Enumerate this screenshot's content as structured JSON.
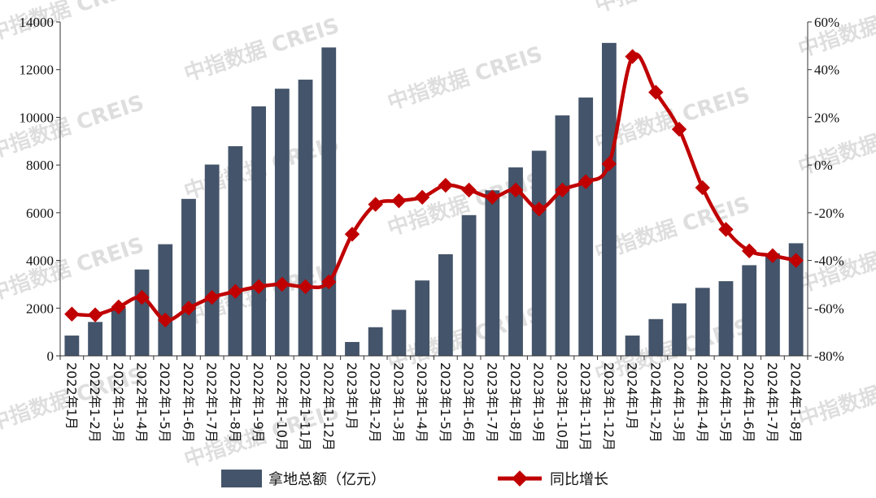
{
  "chart_data": {
    "type": "bar",
    "categories": [
      "2022年1月",
      "2022年1-2月",
      "2022年1-3月",
      "2022年1-4月",
      "2022年1-5月",
      "2022年1-6月",
      "2022年1-7月",
      "2022年1-8月",
      "2022年1-9月",
      "2022年1-10月",
      "2022年1-11月",
      "2022年1-12月",
      "2023年1月",
      "2023年1-2月",
      "2023年1-3月",
      "2023年1-4月",
      "2023年1-5月",
      "2023年1-6月",
      "2023年1-7月",
      "2023年1-8月",
      "2023年1-9月",
      "2023年1-10月",
      "2023年1-11月",
      "2023年1-12月",
      "2024年1月",
      "2024年1-2月",
      "2024年1-3月",
      "2024年1-4月",
      "2024年1-5月",
      "2024年1-6月",
      "2024年1-7月",
      "2024年1-8月"
    ],
    "series": [
      {
        "name": "拿地总额（亿元）",
        "type": "bar",
        "axis": "left",
        "color": "#44546a",
        "values": [
          850,
          1420,
          2000,
          3620,
          4680,
          6580,
          8020,
          8790,
          10460,
          11200,
          11580,
          12930,
          580,
          1200,
          1930,
          3160,
          4260,
          5900,
          6940,
          7900,
          8600,
          10080,
          10830,
          13120,
          850,
          1540,
          2200,
          2850,
          3130,
          3800,
          4300,
          4720
        ]
      },
      {
        "name": "同比增长",
        "type": "line",
        "axis": "right",
        "color": "#c00000",
        "values": [
          -62.5,
          -62.8,
          -59.5,
          -55.5,
          -65,
          -60,
          -55.5,
          -53,
          -51,
          -50,
          -51,
          -49,
          -29,
          -16.5,
          -15,
          -13.5,
          -8.5,
          -10.5,
          -13.5,
          -10.5,
          -18.5,
          -10.5,
          -7,
          0.5,
          45.5,
          30.5,
          15,
          -9.5,
          -27,
          -36,
          -38,
          -40
        ]
      }
    ],
    "y_left": {
      "ylim": [
        0,
        14000
      ],
      "ticks": [
        "0",
        "2000",
        "4000",
        "6000",
        "8000",
        "10000",
        "12000",
        "14000"
      ]
    },
    "y_right": {
      "ylim": [
        -80,
        60
      ],
      "ticks": [
        "-80%",
        "-60%",
        "-40%",
        "-20%",
        "0%",
        "20%",
        "40%",
        "60%"
      ]
    },
    "legend": {
      "placement": "bottom",
      "items": [
        "拿地总额（亿元）",
        "同比增长"
      ]
    },
    "grid": false
  },
  "watermark": "中指数据 CREIS"
}
